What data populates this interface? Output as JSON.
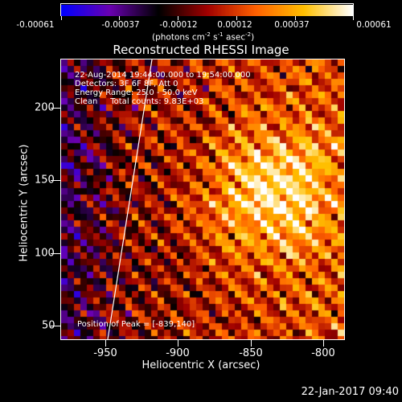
{
  "colorbar": {
    "ticks": [
      "-0.00061",
      "-0.00037",
      "-0.00012",
      "0.00012",
      "0.00037",
      "0.00061"
    ],
    "units_label": "(photons cm",
    "units_exp1": "-2",
    "units_mid": " s",
    "units_exp2": "-1",
    "units_end": " asec",
    "units_exp3": "-2",
    "units_close": ")"
  },
  "title": "Reconstructed RHESSI Image",
  "annotations": {
    "line1": "22-Aug-2014 19:44:00.000 to 19:54:00.000",
    "line2": "Detectors: 3F 6F 8F, Att 0",
    "line3": "Energy Range: 25.0 - 50.0 keV",
    "line4": "Clean     Total counts: 9.83E+03",
    "peak": "Position of Peak = [-839,140]"
  },
  "axes": {
    "xlabel": "Heliocentric X (arcsec)",
    "ylabel": "Heliocentric Y (arcsec)",
    "xticks": [
      "-950",
      "-900",
      "-850",
      "-800"
    ],
    "yticks": [
      "200",
      "150",
      "100",
      "50"
    ]
  },
  "footer_date": "22-Jan-2017 09:40",
  "chart_data": {
    "type": "heatmap",
    "title": "Reconstructed RHESSI Image",
    "xlabel": "Heliocentric X (arcsec)",
    "ylabel": "Heliocentric Y (arcsec)",
    "xlim": [
      -976,
      -788
    ],
    "ylim": [
      40,
      226
    ],
    "colorbar_range": [
      -0.00061,
      0.00061
    ],
    "colormap": [
      "#0000ff",
      "#6a00b0",
      "#000000",
      "#a00000",
      "#ff6000",
      "#ffc000",
      "#ffffff"
    ],
    "peak": [
      -839,
      140
    ],
    "limb": [
      [
        -944,
        40
      ],
      [
        -922,
        226
      ]
    ]
  }
}
